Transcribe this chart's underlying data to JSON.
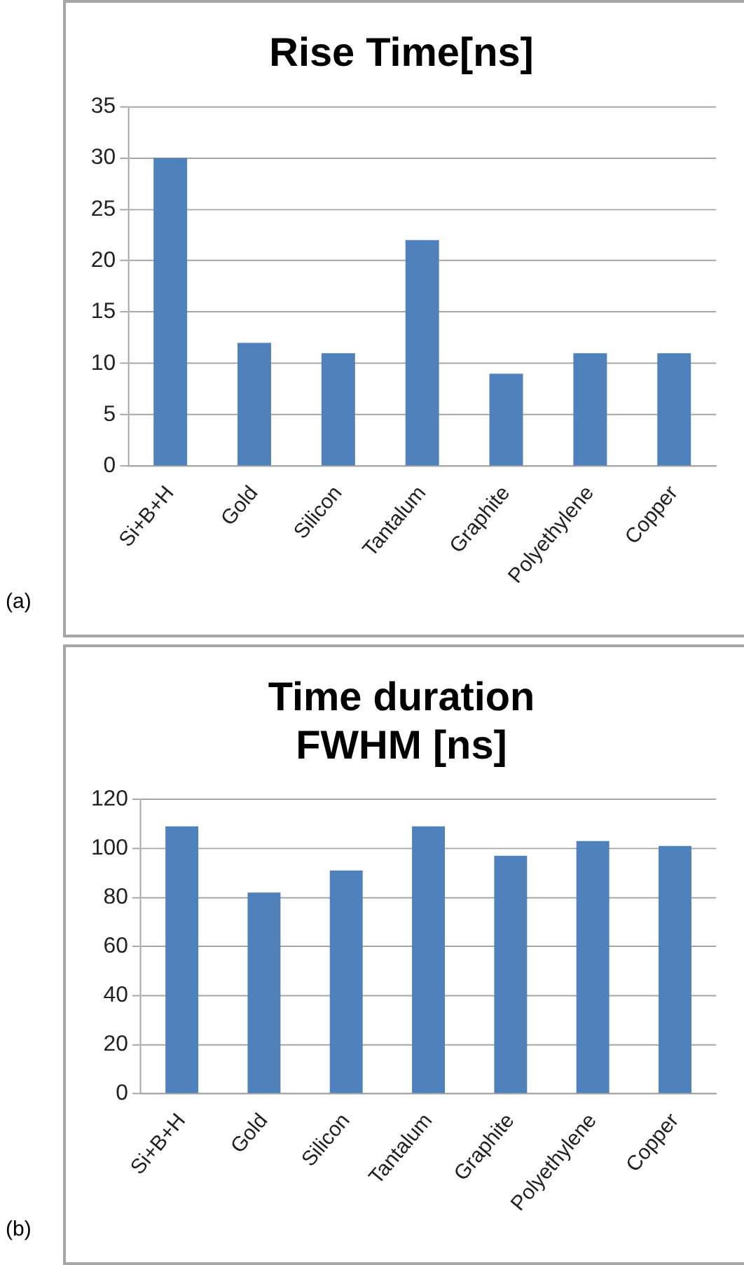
{
  "chart_data": [
    {
      "type": "bar",
      "title": "Rise Time[ns]",
      "categories": [
        "Si+B+H",
        "Gold",
        "Silicon",
        "Tantalum",
        "Graphite",
        "Polyethylene",
        "Copper"
      ],
      "values": [
        30,
        12,
        11,
        22,
        9,
        11,
        11
      ],
      "color": "#4f81bd",
      "ylim": [
        0,
        35
      ],
      "yticks": [
        0,
        5,
        10,
        15,
        20,
        25,
        30,
        35
      ],
      "grid": "y",
      "annotations": [
        "(a)"
      ]
    },
    {
      "type": "bar",
      "title": "Time duration\nFWHM [ns]",
      "categories": [
        "Si+B+H",
        "Gold",
        "Silicon",
        "Tantalum",
        "Graphite",
        "Polyethylene",
        "Copper"
      ],
      "values": [
        109,
        82,
        91,
        109,
        97,
        103,
        101
      ],
      "color": "#4f81bd",
      "ylim": [
        0,
        120
      ],
      "yticks": [
        0,
        20,
        40,
        60,
        80,
        100,
        120
      ],
      "grid": "y",
      "annotations": [
        "(b)"
      ]
    }
  ]
}
